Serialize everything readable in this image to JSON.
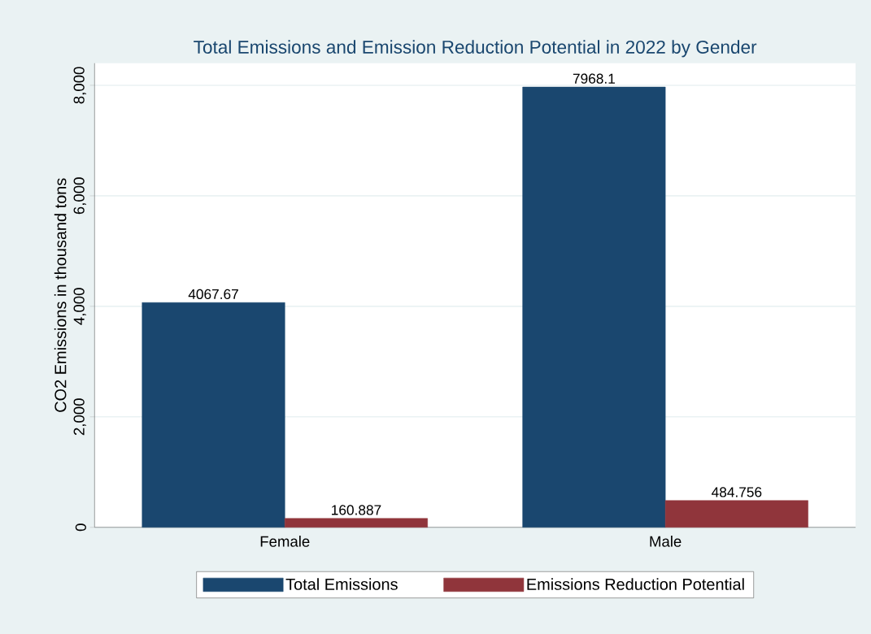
{
  "chart_data": {
    "type": "bar",
    "title": "Total Emissions and Emission Reduction Potential in 2022 by Gender",
    "ylabel": "CO2 Emissions in thousand tons",
    "categories": [
      "Female",
      "Male"
    ],
    "series": [
      {
        "name": "Total Emissions",
        "color": "#1a476f",
        "values": [
          4067.67,
          7968.1
        ]
      },
      {
        "name": "Emissions Reduction Potential",
        "color": "#90353b",
        "values": [
          160.887,
          484.756
        ]
      }
    ],
    "ylim": [
      0,
      8400
    ],
    "yticks": [
      0,
      {
        "value": 2000,
        "label": "2,000"
      },
      {
        "value": 4000,
        "label": "4,000"
      },
      {
        "value": 6000,
        "label": "6,000"
      },
      {
        "value": 8000,
        "label": "8,000"
      }
    ],
    "grid": "y",
    "legend": "bottom",
    "data_labels": true
  }
}
